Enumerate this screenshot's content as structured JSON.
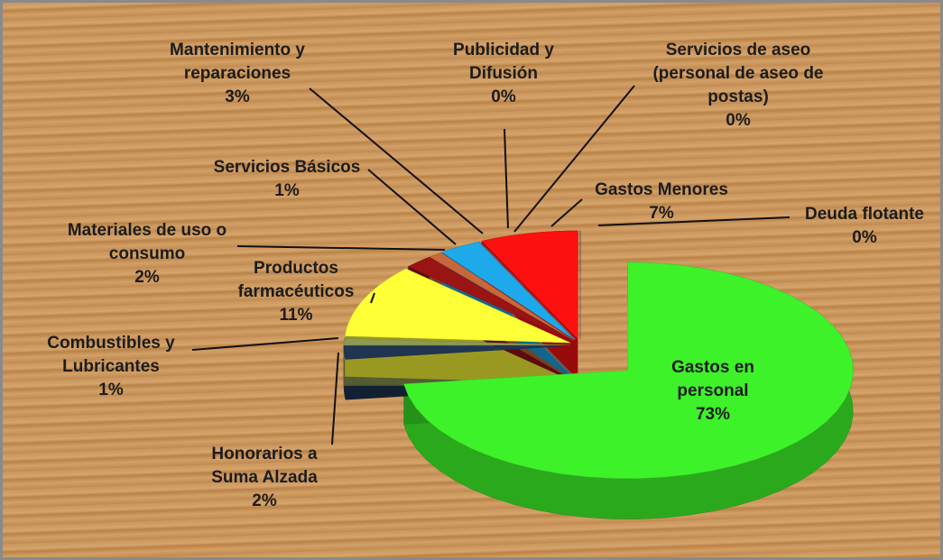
{
  "chart_data": {
    "type": "pie",
    "categories": [
      "Gastos en personal",
      "Honorarios a Suma Alzada",
      "Combustibles y Lubricantes",
      "Productos farmacéuticos",
      "Materiales de uso o consumo",
      "Servicios Básicos",
      "Mantenimiento y reparaciones",
      "Publicidad y Difusión",
      "Servicios de aseo (personal de aseo de postas)",
      "Gastos Menores",
      "Deuda flotante"
    ],
    "values": [
      73,
      2,
      1,
      11,
      2,
      1,
      3,
      0,
      0,
      7,
      0
    ],
    "value_labels": [
      "73%",
      "2%",
      "1%",
      "11%",
      "2%",
      "1%",
      "3%",
      "0%",
      "0%",
      "7%",
      "0%"
    ],
    "colors": [
      "#3ef22a",
      "#1f3552",
      "#8c9a52",
      "#ffff38",
      "#9a1414",
      "#c8683a",
      "#1eaaea",
      "#7f7fff",
      "#a0a0a0",
      "#ff1010",
      "#606060"
    ]
  }
}
